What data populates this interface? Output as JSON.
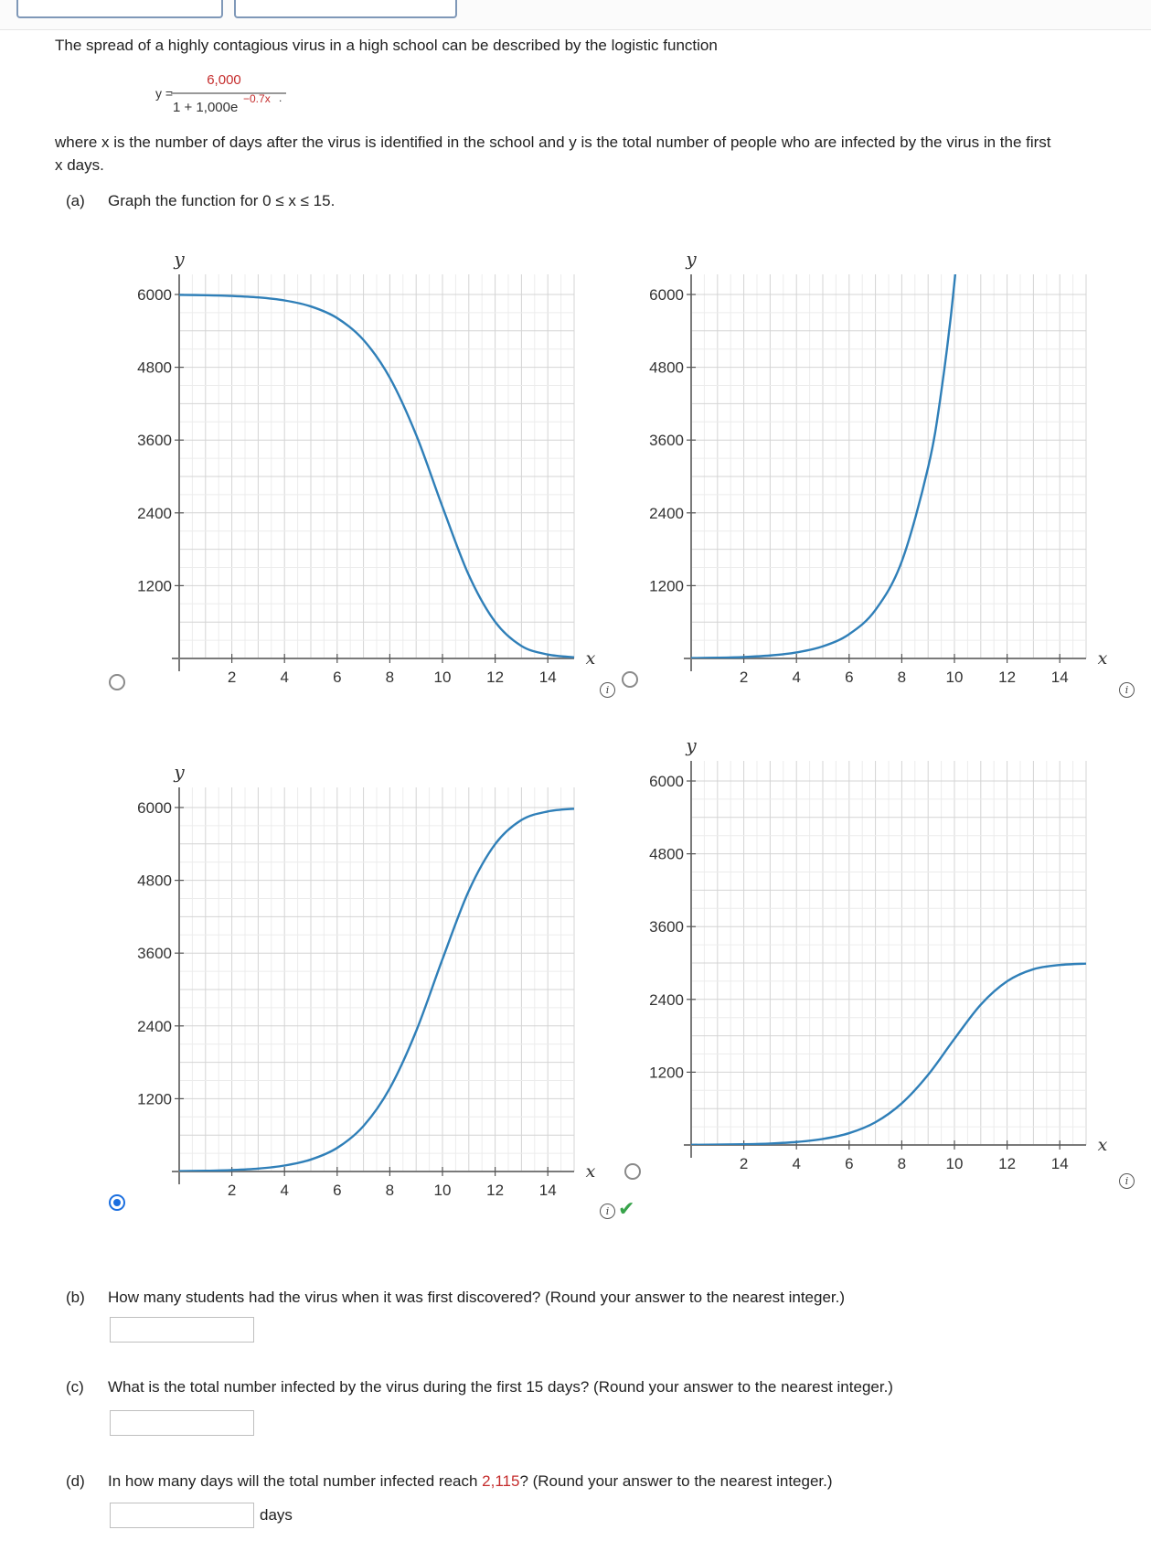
{
  "intro": {
    "line1": "The spread of a highly contagious virus in a high school can be described by the logistic function",
    "formula_lhs": "y =",
    "formula_num": "6,000",
    "formula_den": "1 + 1,000e",
    "formula_exp": "−0.7x",
    "formula_end": ".",
    "line2": "where x is the number of days after the virus is identified in the school and y is the total number of people who are infected by the virus in the first",
    "line3": "x days."
  },
  "part_a": {
    "label": "(a)",
    "text": "Graph the function for 0 ≤ x ≤ 15."
  },
  "axis_labels": {
    "x": "x",
    "y": "y"
  },
  "graph_options": [
    {
      "selected": false,
      "feedback": ""
    },
    {
      "selected": false,
      "feedback": ""
    },
    {
      "selected": true,
      "feedback": "correct"
    },
    {
      "selected": false,
      "feedback": ""
    }
  ],
  "chart_data": [
    {
      "type": "line",
      "x_ticks": [
        "2",
        "4",
        "6",
        "8",
        "10",
        "12",
        "14"
      ],
      "y_ticks": [
        "1200",
        "2400",
        "3600",
        "4800",
        "6000"
      ],
      "xlim": [
        0,
        15
      ],
      "ylim": [
        0,
        6000
      ],
      "grid": true,
      "series": [
        {
          "x": [
            0,
            1,
            2,
            3,
            4,
            5,
            6,
            7,
            8,
            9,
            10,
            11,
            12,
            13,
            14,
            15
          ],
          "y": [
            5994,
            5988,
            5976,
            5952,
            5902,
            5803,
            5611,
            5250,
            4627,
            3686,
            2500,
            1373,
            604,
            206,
            65,
            20
          ]
        }
      ]
    },
    {
      "type": "line",
      "x_ticks": [
        "2",
        "4",
        "6",
        "8",
        "10",
        "12",
        "14"
      ],
      "y_ticks": [
        "1200",
        "2400",
        "3600",
        "4800",
        "6000"
      ],
      "xlim": [
        0,
        15
      ],
      "ylim": [
        0,
        6000
      ],
      "grid": true,
      "series": [
        {
          "x": [
            0,
            1,
            2,
            3,
            4,
            5,
            6,
            7,
            8,
            9,
            9.5,
            10,
            10.5
          ],
          "y": [
            6,
            12,
            24,
            49,
            99,
            199,
            400,
            800,
            1600,
            3150,
            4400,
            6200,
            8800
          ]
        }
      ]
    },
    {
      "type": "line",
      "x_ticks": [
        "2",
        "4",
        "6",
        "8",
        "10",
        "12",
        "14"
      ],
      "y_ticks": [
        "1200",
        "2400",
        "3600",
        "4800",
        "6000"
      ],
      "xlim": [
        0,
        15
      ],
      "ylim": [
        0,
        6000
      ],
      "grid": true,
      "series": [
        {
          "x": [
            0,
            1,
            2,
            3,
            4,
            5,
            6,
            7,
            8,
            9,
            10,
            11,
            12,
            13,
            14,
            15
          ],
          "y": [
            6,
            12,
            24,
            48,
            98,
            197,
            389,
            750,
            1373,
            2314,
            3500,
            4627,
            5396,
            5794,
            5935,
            5980
          ]
        }
      ]
    },
    {
      "type": "line",
      "x_ticks": [
        "2",
        "4",
        "6",
        "8",
        "10",
        "12",
        "14"
      ],
      "y_ticks": [
        "1200",
        "2400",
        "3600",
        "4800",
        "6000"
      ],
      "xlim": [
        0,
        15
      ],
      "ylim": [
        0,
        6000
      ],
      "grid": true,
      "series": [
        {
          "x": [
            0,
            1,
            2,
            3,
            4,
            5,
            6,
            7,
            8,
            9,
            10,
            11,
            12,
            13,
            14,
            15
          ],
          "y": [
            3,
            6,
            12,
            24,
            49,
            99,
            195,
            375,
            687,
            1157,
            1750,
            2314,
            2698,
            2897,
            2967,
            2990
          ]
        }
      ]
    }
  ],
  "part_b": {
    "label": "(b)",
    "text": "How many students had the virus when it was first discovered? (Round your answer to the nearest integer.)",
    "value": ""
  },
  "part_c": {
    "label": "(c)",
    "text": "What is the total number infected by the virus during the first 15 days? (Round your answer to the nearest integer.)",
    "value": ""
  },
  "part_d": {
    "label": "(d)",
    "text_before": "In how many days will the total number infected reach ",
    "highlight": "2,115",
    "text_after": "? (Round your answer to the nearest integer.)",
    "value": "",
    "unit": "days"
  },
  "info_glyph": "i",
  "check_glyph": "✔"
}
